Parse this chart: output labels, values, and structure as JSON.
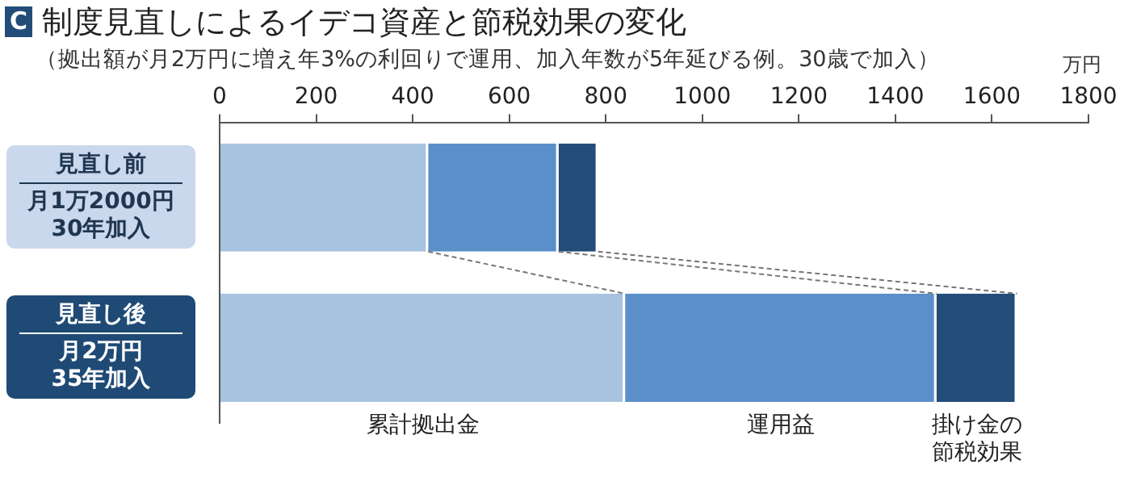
{
  "chart_data": {
    "type": "bar",
    "orientation": "horizontal",
    "stacked": true,
    "title": "制度見直しによるイデコ資産と節税効果の変化",
    "subtitle": "（拠出額が月2万円に増え年3%の利回りで運用、加入年数が5年延びる例。30歳で加入）",
    "xlabel": "万円",
    "annotations": [
      "C",
      "月1万2000円",
      "30年加入",
      "月2万円",
      "35年加入"
    ],
    "categories": [
      "見直し前",
      "見直し後"
    ],
    "xlim": [
      0,
      1800
    ],
    "xticks": [
      0,
      200,
      400,
      600,
      800,
      1000,
      1200,
      1400,
      1600,
      1800
    ],
    "grid": false,
    "legend": false,
    "series": [
      {
        "name": "累計拠出金",
        "color": "#a8c3e0",
        "values": [
          432,
          840
        ]
      },
      {
        "name": "運用益",
        "color": "#5b8fc9",
        "values": [
          270,
          645
        ]
      },
      {
        "name": "掛け金の節税効果",
        "color": "#224d78",
        "values": [
          82,
          167
        ]
      }
    ]
  }
}
